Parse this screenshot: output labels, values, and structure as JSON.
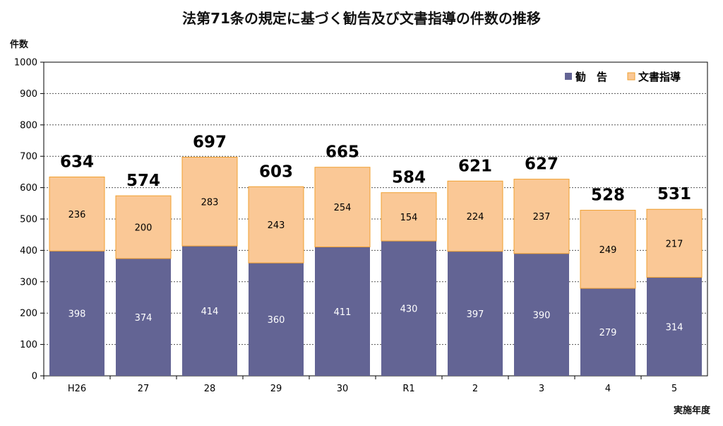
{
  "chart_data": {
    "type": "bar",
    "stacked": true,
    "title": "法第71条の規定に基づく勧告及び文書指導の件数の推移",
    "ylabel": "件数",
    "xlabel": "実施年度",
    "ylim": [
      0,
      1000
    ],
    "yticks": [
      0,
      100,
      200,
      300,
      400,
      500,
      600,
      700,
      800,
      900,
      1000
    ],
    "grid": true,
    "legend_position": "top-right",
    "categories": [
      "H26",
      "27",
      "28",
      "29",
      "30",
      "R1",
      "2",
      "3",
      "4",
      "5"
    ],
    "series": [
      {
        "name": "勧　告",
        "color": "#636494",
        "values": [
          398,
          374,
          414,
          360,
          411,
          430,
          397,
          390,
          279,
          314
        ]
      },
      {
        "name": "文書指導",
        "color": "#fac896",
        "values": [
          236,
          200,
          283,
          243,
          254,
          154,
          224,
          237,
          249,
          217
        ]
      }
    ],
    "totals": [
      634,
      574,
      697,
      603,
      665,
      584,
      621,
      627,
      528,
      531
    ]
  }
}
